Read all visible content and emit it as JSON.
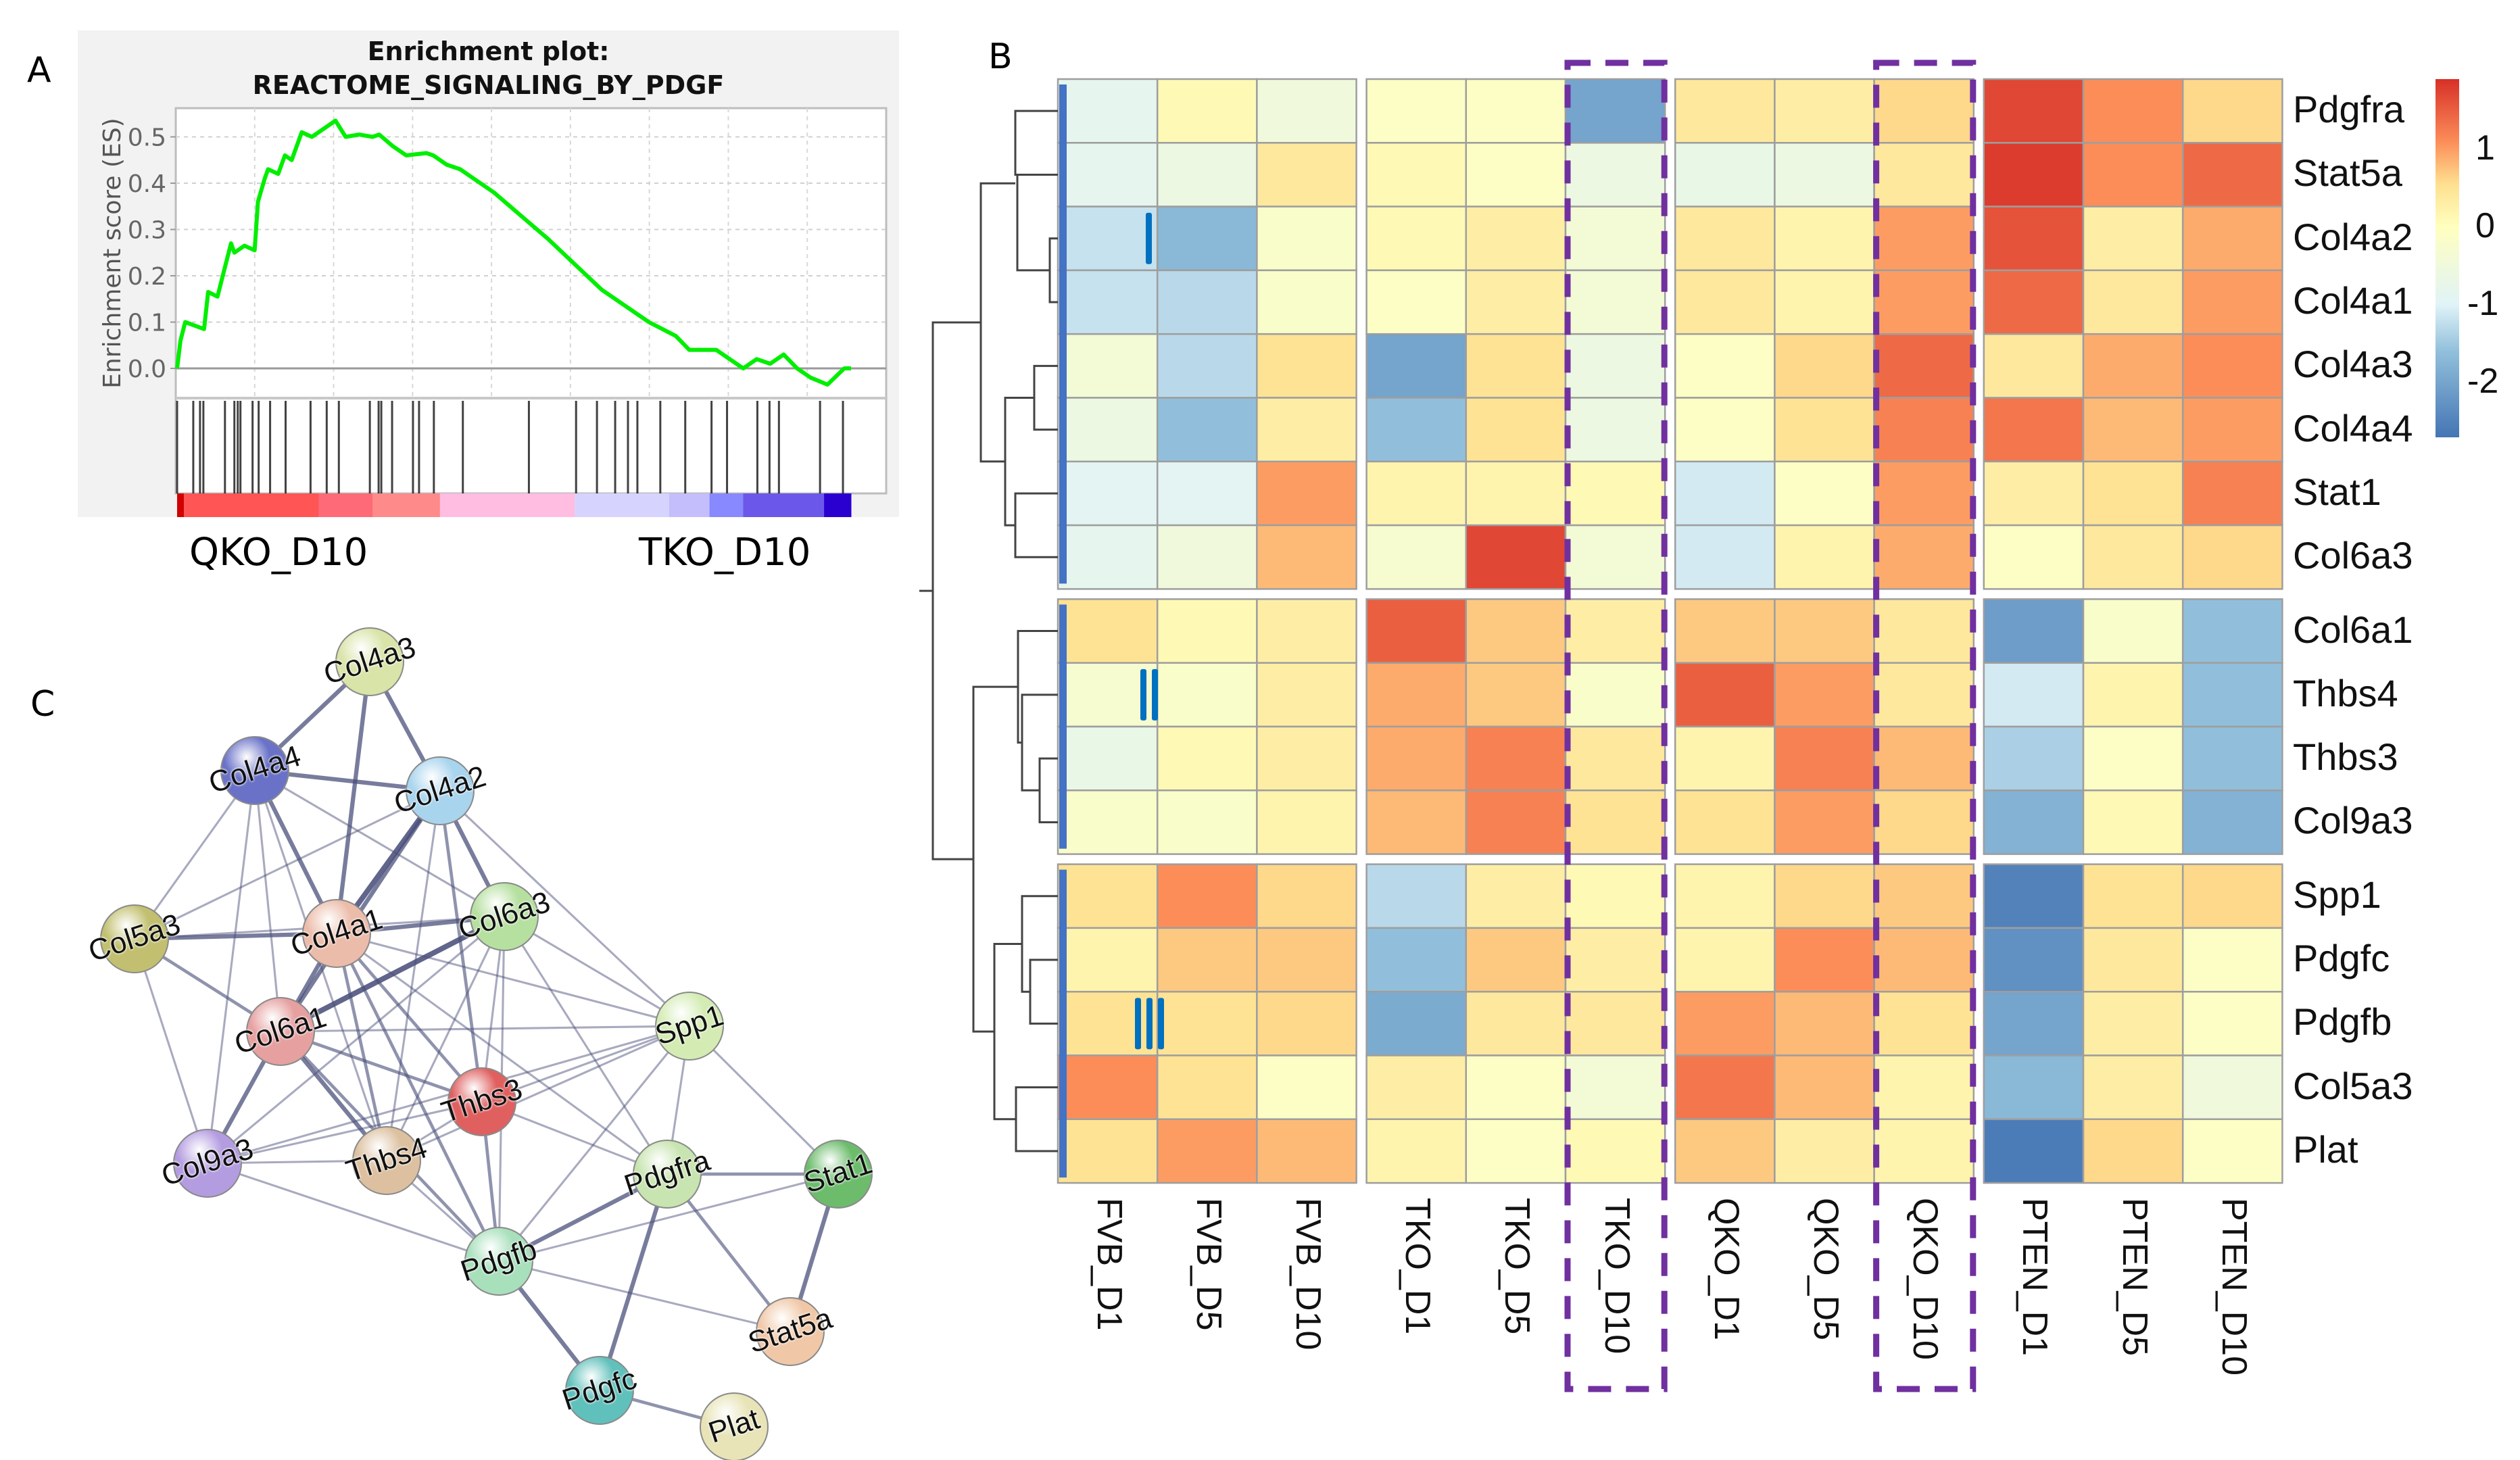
{
  "panels": {
    "a": "A",
    "b": "B",
    "c": "C"
  },
  "chart_data": [
    {
      "type": "line",
      "panel": "A",
      "title_line1": "Enrichment plot:",
      "title_line2": "REACTOME_SIGNALING_BY_PDGF",
      "xlabel": "",
      "ylabel": "Enrichment score (ES)",
      "ylim": [
        -0.07,
        0.54
      ],
      "yticks": [
        "0.0",
        "0.1",
        "0.2",
        "0.3",
        "0.4",
        "0.5"
      ],
      "grid": true,
      "line_color": "#00ee00",
      "phenotype_left": "QKO_D10",
      "phenotype_right": "TKO_D10",
      "series": [
        {
          "name": "running ES",
          "x": [
            0,
            0.005,
            0.012,
            0.04,
            0.046,
            0.06,
            0.066,
            0.08,
            0.085,
            0.1,
            0.115,
            0.12,
            0.13,
            0.135,
            0.15,
            0.16,
            0.17,
            0.185,
            0.2,
            0.235,
            0.25,
            0.27,
            0.29,
            0.3,
            0.32,
            0.34,
            0.37,
            0.38,
            0.4,
            0.42,
            0.44,
            0.47,
            0.55,
            0.63,
            0.7,
            0.74,
            0.76,
            0.8,
            0.84,
            0.86,
            0.88,
            0.9,
            0.92,
            0.94,
            0.965,
            0.99,
            1.0
          ],
          "y": [
            0.0,
            0.06,
            0.1,
            0.085,
            0.165,
            0.155,
            0.19,
            0.27,
            0.25,
            0.265,
            0.255,
            0.36,
            0.41,
            0.43,
            0.42,
            0.46,
            0.45,
            0.51,
            0.5,
            0.535,
            0.5,
            0.505,
            0.5,
            0.505,
            0.48,
            0.46,
            0.465,
            0.46,
            0.44,
            0.43,
            0.41,
            0.38,
            0.28,
            0.17,
            0.1,
            0.07,
            0.04,
            0.04,
            0.0,
            0.02,
            0.01,
            0.03,
            0.0,
            -0.02,
            -0.035,
            0.0,
            0.0
          ]
        }
      ],
      "hits": [
        0.0,
        0.024,
        0.034,
        0.039,
        0.071,
        0.085,
        0.09,
        0.094,
        0.112,
        0.121,
        0.138,
        0.161,
        0.198,
        0.222,
        0.24,
        0.286,
        0.299,
        0.303,
        0.319,
        0.35,
        0.359,
        0.381,
        0.424,
        0.522,
        0.592,
        0.623,
        0.65,
        0.669,
        0.683,
        0.717,
        0.754,
        0.793,
        0.816,
        0.861,
        0.879,
        0.893,
        0.954,
        0.988
      ],
      "rank_colorbar": [
        {
          "from": 0.0,
          "to": 0.01,
          "color": "#d00000"
        },
        {
          "from": 0.01,
          "to": 0.21,
          "color": "#ff5555"
        },
        {
          "from": 0.21,
          "to": 0.29,
          "color": "#ff6a78"
        },
        {
          "from": 0.29,
          "to": 0.39,
          "color": "#ff8a8a"
        },
        {
          "from": 0.39,
          "to": 0.59,
          "color": "#ffbde2"
        },
        {
          "from": 0.59,
          "to": 0.73,
          "color": "#d6d4ff"
        },
        {
          "from": 0.73,
          "to": 0.79,
          "color": "#c4befc"
        },
        {
          "from": 0.79,
          "to": 0.84,
          "color": "#8888ff"
        },
        {
          "from": 0.84,
          "to": 0.96,
          "color": "#6b58ea"
        },
        {
          "from": 0.96,
          "to": 1.0,
          "color": "#2a00d0"
        }
      ]
    },
    {
      "type": "heatmap",
      "panel": "B",
      "columns": [
        "FVB_D1",
        "FVB_D5",
        "FVB_D10",
        "TKO_D1",
        "TKO_D5",
        "TKO_D10",
        "QKO_D1",
        "QKO_D5",
        "QKO_D10",
        "PTEN_D1",
        "PTEN_D5",
        "PTEN_D10"
      ],
      "column_groups": [
        [
          "FVB_D1",
          "FVB_D5",
          "FVB_D10"
        ],
        [
          "TKO_D1",
          "TKO_D5",
          "TKO_D10"
        ],
        [
          "QKO_D1",
          "QKO_D5",
          "QKO_D10"
        ],
        [
          "PTEN_D1",
          "PTEN_D5",
          "PTEN_D10"
        ]
      ],
      "highlighted_columns": [
        "TKO_D10",
        "QKO_D10"
      ],
      "highlight_color": "#7030a0",
      "clusters": [
        {
          "label": "I",
          "rows": [
            {
              "gene": "Pdgfra",
              "values": [
                -0.8,
                0.1,
                -0.5,
                -0.1,
                -0.1,
                -2.0,
                0.4,
                0.3,
                0.6,
                1.7,
                1.1,
                0.6
              ]
            },
            {
              "gene": "Stat5a",
              "values": [
                -0.8,
                -0.6,
                0.4,
                0.1,
                -0.1,
                -0.6,
                -0.7,
                -0.6,
                0.4,
                1.8,
                1.1,
                1.4
              ]
            },
            {
              "gene": "Col4a2",
              "values": [
                -1.2,
                -1.7,
                -0.2,
                0.1,
                0.3,
                -0.4,
                0.4,
                0.2,
                1.0,
                1.6,
                0.3,
                0.9
              ]
            },
            {
              "gene": "Col4a1",
              "values": [
                -1.2,
                -1.3,
                -0.2,
                -0.1,
                0.3,
                -0.4,
                0.4,
                0.2,
                1.0,
                1.4,
                0.4,
                1.0
              ]
            },
            {
              "gene": "Col4a3",
              "values": [
                -0.4,
                -1.3,
                0.5,
                -2.0,
                0.5,
                -0.6,
                -0.1,
                0.6,
                1.4,
                0.4,
                0.9,
                1.1
              ]
            },
            {
              "gene": "Col4a4",
              "values": [
                -0.6,
                -1.6,
                0.3,
                -1.6,
                0.5,
                -0.6,
                -0.1,
                0.5,
                1.2,
                1.3,
                0.8,
                1.0
              ]
            },
            {
              "gene": "Stat1",
              "values": [
                -0.9,
                -0.9,
                1.0,
                0.2,
                0.2,
                0.1,
                -1.1,
                -0.1,
                1.0,
                0.3,
                0.5,
                1.2
              ]
            },
            {
              "gene": "Col6a3",
              "values": [
                -0.8,
                -0.5,
                0.8,
                -0.3,
                1.7,
                -0.4,
                -1.1,
                0.2,
                0.9,
                -0.1,
                0.4,
                0.6
              ]
            }
          ]
        },
        {
          "label": "II",
          "rows": [
            {
              "gene": "Col6a1",
              "values": [
                0.5,
                0.1,
                0.3,
                1.5,
                0.7,
                0.3,
                0.7,
                0.7,
                0.4,
                -2.1,
                -0.2,
                -1.6
              ]
            },
            {
              "gene": "Thbs4",
              "values": [
                -0.3,
                -0.2,
                0.3,
                0.9,
                0.7,
                -0.2,
                1.5,
                1.0,
                0.4,
                -1.1,
                0.2,
                -1.6
              ]
            },
            {
              "gene": "Thbs3",
              "values": [
                -0.7,
                0.1,
                0.3,
                0.9,
                1.2,
                0.4,
                0.2,
                1.2,
                0.8,
                -1.4,
                -0.1,
                -1.6
              ]
            },
            {
              "gene": "Col9a3",
              "values": [
                -0.2,
                -0.2,
                0.2,
                0.8,
                1.2,
                0.5,
                0.5,
                1.0,
                0.6,
                -1.8,
                0.1,
                -1.8
              ]
            }
          ]
        },
        {
          "label": "III",
          "rows": [
            {
              "gene": "Spp1",
              "values": [
                0.5,
                1.1,
                0.6,
                -1.3,
                0.3,
                0.1,
                0.2,
                0.6,
                0.7,
                -2.5,
                0.5,
                0.6
              ]
            },
            {
              "gene": "Pdgfc",
              "values": [
                0.2,
                0.7,
                0.7,
                -1.6,
                0.7,
                0.3,
                0.2,
                1.1,
                0.8,
                -2.3,
                0.4,
                -0.1
              ]
            },
            {
              "gene": "Pdgfb",
              "values": [
                0.5,
                0.5,
                0.6,
                -1.9,
                0.4,
                0.4,
                1.0,
                0.8,
                0.5,
                -2.0,
                0.3,
                -0.1
              ]
            },
            {
              "gene": "Col5a3",
              "values": [
                1.1,
                0.5,
                -0.1,
                0.3,
                -0.1,
                -0.4,
                1.3,
                0.8,
                0.2,
                -1.7,
                0.3,
                -0.5
              ]
            },
            {
              "gene": "Plat",
              "values": [
                0.5,
                1.0,
                0.8,
                0.2,
                -0.1,
                0.1,
                0.7,
                0.3,
                0.2,
                -2.6,
                0.6,
                -0.1
              ]
            }
          ]
        }
      ],
      "legend": {
        "ticks": [
          "1",
          "0",
          "-1",
          "-2"
        ],
        "tick_values": [
          1,
          0,
          -1,
          -2
        ],
        "range": [
          -2.7,
          1.9
        ],
        "colormap": [
          "#4575b4",
          "#91bfdb",
          "#e0f3f8",
          "#ffffbf",
          "#fee090",
          "#fc8d59",
          "#d73027"
        ]
      },
      "cluster_marker_color": "#0070c0",
      "row_annotation_color": "#4472c4"
    }
  ],
  "network": {
    "panel": "C",
    "nodes": [
      {
        "id": "Col4a3",
        "color": "#d8e4a8"
      },
      {
        "id": "Col4a4",
        "color": "#6a72c8"
      },
      {
        "id": "Col4a2",
        "color": "#a8d4ee"
      },
      {
        "id": "Col5a3",
        "color": "#c2c070"
      },
      {
        "id": "Col4a1",
        "color": "#ecbcaa"
      },
      {
        "id": "Col6a3",
        "color": "#b6e0a0"
      },
      {
        "id": "Col6a1",
        "color": "#e6a0a0"
      },
      {
        "id": "Spp1",
        "color": "#d4ecb4"
      },
      {
        "id": "Thbs3",
        "color": "#e06060"
      },
      {
        "id": "Col9a3",
        "color": "#b49ce0"
      },
      {
        "id": "Thbs4",
        "color": "#dcc0a0"
      },
      {
        "id": "Pdgfra",
        "color": "#c8e4b0"
      },
      {
        "id": "Stat1",
        "color": "#6cbc6c"
      },
      {
        "id": "Pdgfb",
        "color": "#a8e0bc"
      },
      {
        "id": "Stat5a",
        "color": "#f0c8a8"
      },
      {
        "id": "Pdgfc",
        "color": "#60c0bc"
      },
      {
        "id": "Plat",
        "color": "#e8e4b8"
      }
    ],
    "edges": [
      [
        "Col4a3",
        "Col4a4",
        3
      ],
      [
        "Col4a3",
        "Col4a2",
        3
      ],
      [
        "Col4a3",
        "Col4a1",
        3
      ],
      [
        "Col4a4",
        "Col4a2",
        3
      ],
      [
        "Col4a4",
        "Col4a1",
        3
      ],
      [
        "Col4a4",
        "Col5a3",
        1
      ],
      [
        "Col4a4",
        "Col6a1",
        1
      ],
      [
        "Col4a4",
        "Col9a3",
        1
      ],
      [
        "Col4a4",
        "Col6a3",
        1
      ],
      [
        "Col4a4",
        "Thbs4",
        1
      ],
      [
        "Col4a2",
        "Col4a1",
        4
      ],
      [
        "Col4a2",
        "Col6a3",
        3
      ],
      [
        "Col4a2",
        "Col5a3",
        1
      ],
      [
        "Col4a2",
        "Col6a1",
        3
      ],
      [
        "Col4a2",
        "Thbs3",
        2
      ],
      [
        "Col4a2",
        "Spp1",
        1
      ],
      [
        "Col4a2",
        "Thbs4",
        1
      ],
      [
        "Col5a3",
        "Col4a1",
        3
      ],
      [
        "Col5a3",
        "Col6a1",
        2
      ],
      [
        "Col5a3",
        "Col9a3",
        1
      ],
      [
        "Col5a3",
        "Col6a3",
        1
      ],
      [
        "Col4a1",
        "Col6a3",
        3
      ],
      [
        "Col4a1",
        "Col6a1",
        3
      ],
      [
        "Col4a1",
        "Thbs3",
        2
      ],
      [
        "Col4a1",
        "Thbs4",
        2
      ],
      [
        "Col4a1",
        "Spp1",
        1
      ],
      [
        "Col4a1",
        "Pdgfb",
        2
      ],
      [
        "Col4a1",
        "Pdgfra",
        1
      ],
      [
        "Col6a3",
        "Col6a1",
        4
      ],
      [
        "Col6a3",
        "Spp1",
        1
      ],
      [
        "Col6a3",
        "Thbs3",
        1
      ],
      [
        "Col6a3",
        "Thbs4",
        1
      ],
      [
        "Col6a3",
        "Pdgfb",
        1
      ],
      [
        "Col6a3",
        "Col9a3",
        1
      ],
      [
        "Col6a3",
        "Pdgfra",
        1
      ],
      [
        "Col6a1",
        "Col9a3",
        3
      ],
      [
        "Col6a1",
        "Thbs4",
        3
      ],
      [
        "Col6a1",
        "Thbs3",
        2
      ],
      [
        "Col6a1",
        "Spp1",
        1
      ],
      [
        "Col6a1",
        "Pdgfb",
        2
      ],
      [
        "Spp1",
        "Thbs3",
        1
      ],
      [
        "Spp1",
        "Thbs4",
        1
      ],
      [
        "Spp1",
        "Col9a3",
        1
      ],
      [
        "Spp1",
        "Pdgfb",
        1
      ],
      [
        "Spp1",
        "Pdgfra",
        1
      ],
      [
        "Spp1",
        "Stat1",
        1
      ],
      [
        "Thbs3",
        "Thbs4",
        1
      ],
      [
        "Thbs3",
        "Col9a3",
        1
      ],
      [
        "Thbs3",
        "Pdgfb",
        2
      ],
      [
        "Thbs3",
        "Pdgfra",
        1
      ],
      [
        "Col9a3",
        "Thbs4",
        1
      ],
      [
        "Col9a3",
        "Pdgfb",
        1
      ],
      [
        "Thbs4",
        "Pdgfb",
        1
      ],
      [
        "Pdgfra",
        "Pdgfb",
        3
      ],
      [
        "Pdgfra",
        "Stat1",
        2
      ],
      [
        "Pdgfra",
        "Stat5a",
        2
      ],
      [
        "Pdgfra",
        "Pdgfc",
        3
      ],
      [
        "Pdgfb",
        "Stat1",
        1
      ],
      [
        "Pdgfb",
        "Stat5a",
        1
      ],
      [
        "Pdgfb",
        "Pdgfc",
        3
      ],
      [
        "Stat1",
        "Stat5a",
        3
      ],
      [
        "Pdgfc",
        "Plat",
        2
      ]
    ],
    "edge_color": "#4a4f7a"
  }
}
